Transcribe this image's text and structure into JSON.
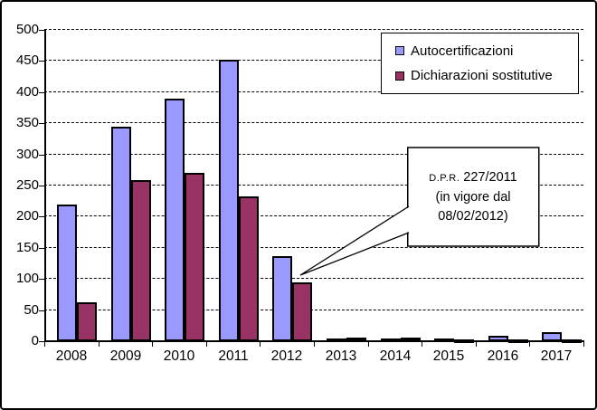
{
  "chart_data": {
    "type": "bar",
    "title": "",
    "xlabel": "",
    "ylabel": "",
    "categories": [
      "2008",
      "2009",
      "2010",
      "2011",
      "2012",
      "2013",
      "2014",
      "2015",
      "2016",
      "2017"
    ],
    "series": [
      {
        "name": "Autocertificazioni",
        "color": "#9999FF",
        "values": [
          220,
          345,
          390,
          452,
          137,
          4,
          5,
          4,
          8,
          15
        ]
      },
      {
        "name": "Dichiarazioni sostitutive",
        "color": "#993366",
        "values": [
          62,
          258,
          270,
          232,
          94,
          6,
          6,
          1,
          1,
          2
        ]
      }
    ],
    "ylim": [
      0,
      500
    ],
    "yticks": [
      0,
      50,
      100,
      150,
      200,
      250,
      300,
      350,
      400,
      450,
      500
    ],
    "grid": "horizontal-dashed",
    "legend_position": "top-right",
    "bar_border_color": "#000000",
    "annotation": {
      "prefix": "D.P.R.",
      "title": "227/2011",
      "line2": "(in vigore dal",
      "line3": "08/02/2012)",
      "points_to": "2012"
    }
  },
  "colors": {
    "background": "#FFFFFF",
    "frame_border": "#000000",
    "gridline": "#000000",
    "series1": "#9999FF",
    "series2": "#993366"
  }
}
